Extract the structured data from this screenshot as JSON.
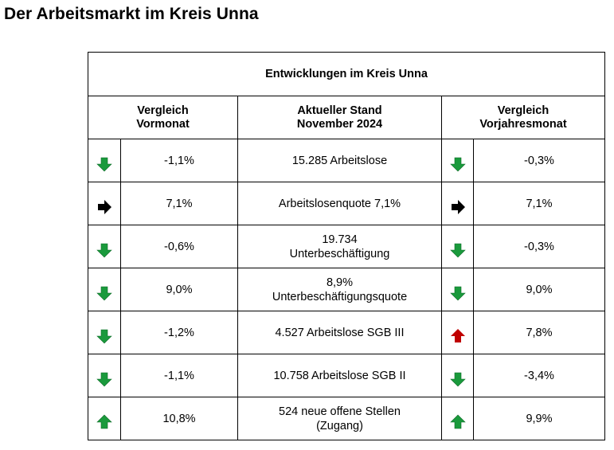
{
  "page_title": "Der Arbeitsmarkt im Kreis Unna",
  "table": {
    "caption": "Entwicklungen im Kreis Unna",
    "col_left": [
      "Vergleich",
      "Vormonat"
    ],
    "col_mid": [
      "Aktueller Stand",
      "November 2024"
    ],
    "col_right": [
      "Vergleich",
      "Vorjahresmonat"
    ],
    "colors": {
      "green": "#1a9a3c",
      "red": "#c00000",
      "black": "#000000"
    },
    "rows": [
      {
        "left_icon": "arrow-down-green-icon",
        "left_value": "-1,1%",
        "mid_lines": [
          "15.285 Arbeitslose"
        ],
        "right_icon": "arrow-down-green-icon",
        "right_value": "-0,3%"
      },
      {
        "left_icon": "arrow-right-black-icon",
        "left_value": "7,1%",
        "mid_lines": [
          "Arbeitslosenquote 7,1%"
        ],
        "right_icon": "arrow-right-black-icon",
        "right_value": "7,1%"
      },
      {
        "left_icon": "arrow-down-green-icon",
        "left_value": "-0,6%",
        "mid_lines": [
          "19.734",
          "Unterbeschäftigung"
        ],
        "right_icon": "arrow-down-green-icon",
        "right_value": "-0,3%"
      },
      {
        "left_icon": "arrow-down-green-icon",
        "left_value": "9,0%",
        "mid_lines": [
          "8,9%",
          "Unterbeschäftigungsquote"
        ],
        "right_icon": "arrow-down-green-icon",
        "right_value": "9,0%"
      },
      {
        "left_icon": "arrow-down-green-icon",
        "left_value": "-1,2%",
        "mid_lines": [
          "4.527 Arbeitslose SGB III"
        ],
        "right_icon": "arrow-up-red-icon",
        "right_value": "7,8%"
      },
      {
        "left_icon": "arrow-down-green-icon",
        "left_value": "-1,1%",
        "mid_lines": [
          "10.758 Arbeitslose SGB II"
        ],
        "right_icon": "arrow-down-green-icon",
        "right_value": "-3,4%"
      },
      {
        "left_icon": "arrow-up-green-icon",
        "left_value": "10,8%",
        "mid_lines": [
          "524 neue offene Stellen",
          "(Zugang)"
        ],
        "right_icon": "arrow-up-green-icon",
        "right_value": "9,9%"
      }
    ]
  }
}
